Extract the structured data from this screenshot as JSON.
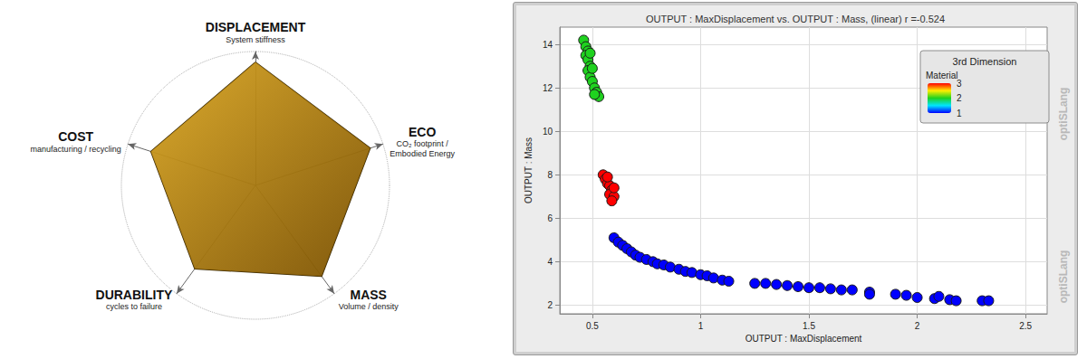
{
  "chart_data": [
    {
      "type": "radar",
      "indicators": [
        {
          "name": "DISPLACEMENT",
          "subtitle": "System stiffness"
        },
        {
          "name": "COST",
          "subtitle": "manufacturing / recycling"
        },
        {
          "name": "DURABILITY",
          "subtitle": "cycles to failure"
        },
        {
          "name": "MASS",
          "subtitle": "Volume / density"
        },
        {
          "name": "ECO",
          "subtitle": "CO₂ footprint /\nEmbodied Energy"
        }
      ],
      "values": [
        0.92,
        0.82,
        0.77,
        0.84,
        0.9
      ],
      "ylim": [
        0,
        1
      ],
      "color": "#d9a521",
      "grid": true,
      "tick_labels": false
    },
    {
      "type": "scatter",
      "title": "OUTPUT : MaxDisplacement vs. OUTPUT : Mass, (linear) r =-0.524",
      "x_label": "OUTPUT : MaxDisplacement",
      "y_label": "OUTPUT : Mass",
      "x": [
        0.46,
        0.47,
        0.48,
        0.47,
        0.48,
        0.49,
        0.48,
        0.49,
        0.5,
        0.51,
        0.52,
        0.53,
        0.51,
        0.49,
        0.5,
        0.55,
        0.56,
        0.57,
        0.58,
        0.59,
        0.58,
        0.6,
        0.59,
        0.57,
        0.6,
        0.6,
        0.62,
        0.64,
        0.66,
        0.68,
        0.7,
        0.72,
        0.75,
        0.78,
        0.8,
        0.83,
        0.86,
        0.9,
        0.93,
        0.96,
        1.0,
        1.03,
        1.06,
        1.1,
        1.13,
        1.25,
        1.3,
        1.35,
        1.4,
        1.45,
        1.5,
        1.55,
        1.6,
        1.65,
        1.7,
        1.78,
        1.78,
        1.9,
        1.95,
        2.0,
        2.08,
        2.1,
        2.15,
        2.18,
        2.3,
        2.33
      ],
      "values": [
        14.2,
        13.9,
        13.7,
        13.5,
        13.3,
        13.0,
        12.8,
        12.5,
        12.3,
        12.0,
        11.8,
        11.6,
        11.7,
        13.6,
        12.9,
        8.0,
        7.8,
        7.6,
        7.5,
        7.3,
        7.1,
        7.0,
        6.8,
        7.9,
        7.4,
        5.1,
        4.9,
        4.75,
        4.6,
        4.45,
        4.3,
        4.2,
        4.1,
        4.0,
        3.9,
        3.85,
        3.75,
        3.65,
        3.55,
        3.5,
        3.4,
        3.35,
        3.25,
        3.15,
        3.1,
        3.0,
        3.0,
        2.95,
        2.9,
        2.85,
        2.8,
        2.8,
        2.75,
        2.7,
        2.7,
        2.6,
        2.5,
        2.5,
        2.45,
        2.35,
        2.3,
        2.4,
        2.25,
        2.2,
        2.2,
        2.2
      ],
      "material": [
        2,
        2,
        2,
        2,
        2,
        2,
        2,
        2,
        2,
        2,
        2,
        2,
        2,
        2,
        2,
        3,
        3,
        3,
        3,
        3,
        3,
        3,
        3,
        3,
        3,
        1,
        1,
        1,
        1,
        1,
        1,
        1,
        1,
        1,
        1,
        1,
        1,
        1,
        1,
        1,
        1,
        1,
        1,
        1,
        1,
        1,
        1,
        1,
        1,
        1,
        1,
        1,
        1,
        1,
        1,
        1,
        1,
        1,
        1,
        1,
        1,
        1,
        1,
        1,
        1,
        1
      ],
      "colorbar": {
        "title": "3rd Dimension",
        "label": "Material",
        "range": [
          1,
          3
        ],
        "ticks": [
          1,
          2,
          3
        ]
      },
      "xlim": [
        0.35,
        2.6
      ],
      "xticks": [
        0.5,
        1,
        1.5,
        2,
        2.5
      ],
      "ylim": [
        1.6,
        14.8
      ],
      "yticks": [
        2,
        4,
        6,
        8,
        10,
        12,
        14
      ],
      "grid": true,
      "marker": "circle",
      "watermark": "optiSLang"
    }
  ]
}
